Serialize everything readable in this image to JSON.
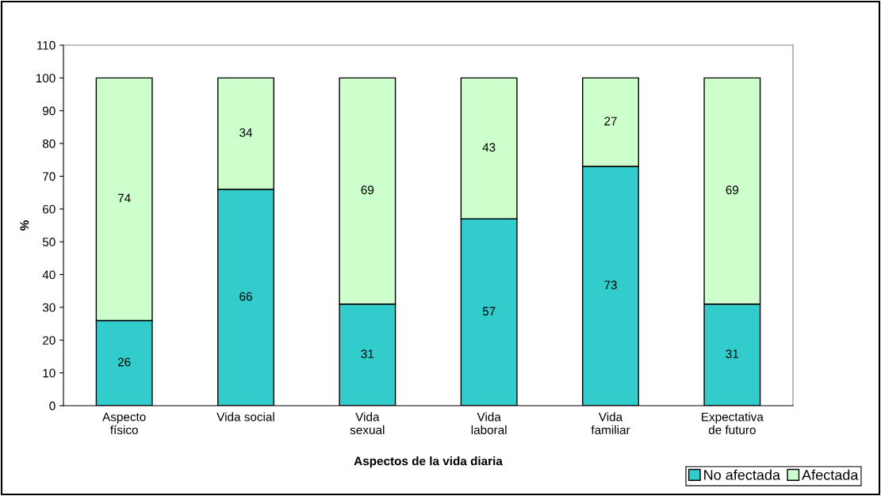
{
  "chart_data": {
    "type": "bar",
    "stacked": true,
    "xlabel": "Aspectos de la vida diaria",
    "ylabel": "%",
    "categories": [
      "Aspecto\nfísico",
      "Vida social",
      "Vida\nsexual",
      "Vida\nlaboral",
      "Vida\nfamiliar",
      "Expectativa\nde futuro"
    ],
    "series": [
      {
        "name": "No afectada",
        "color": "#33cccc",
        "values": [
          26,
          66,
          31,
          57,
          73,
          31
        ]
      },
      {
        "name": "Afectada",
        "color": "#ccffcc",
        "values": [
          74,
          34,
          69,
          43,
          27,
          69
        ]
      }
    ],
    "ylim": [
      0,
      110
    ],
    "yticks": [
      0,
      10,
      20,
      30,
      40,
      50,
      60,
      70,
      80,
      90,
      100,
      110
    ],
    "data_labels": true,
    "grid": false,
    "legend": "bottom right"
  }
}
